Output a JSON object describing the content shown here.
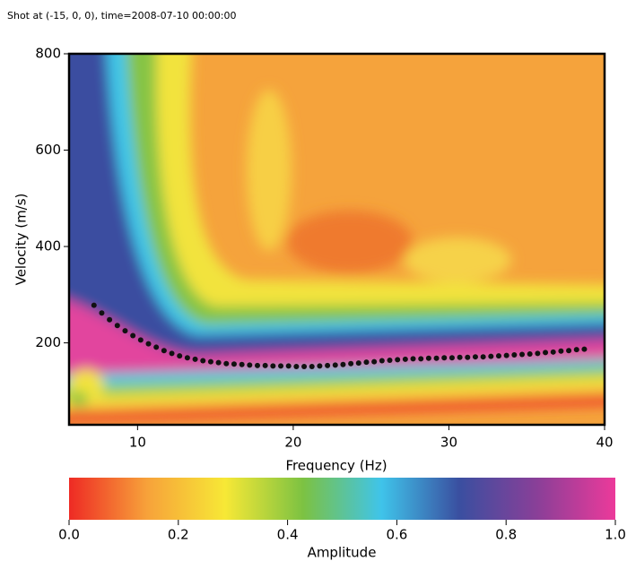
{
  "chart_data": {
    "type": "scatter",
    "title": "Shot at (-15, 0, 0), time=2008-07-10 00:00:00",
    "x_label": "Frequency (Hz)",
    "y_label": "Velocity (m/s)",
    "xlim": [
      5.6,
      40
    ],
    "ylim": [
      30,
      800
    ],
    "xticks": [
      10,
      20,
      30,
      40
    ],
    "yticks": [
      200,
      400,
      600,
      800
    ],
    "color": "#111111",
    "x": [
      7.2,
      7.7,
      8.2,
      8.7,
      9.2,
      9.7,
      10.2,
      10.7,
      11.2,
      11.7,
      12.2,
      12.7,
      13.2,
      13.7,
      14.2,
      14.7,
      15.2,
      15.7,
      16.2,
      16.7,
      17.2,
      17.7,
      18.2,
      18.7,
      19.2,
      19.7,
      20.2,
      20.7,
      21.2,
      21.7,
      22.2,
      22.7,
      23.2,
      23.7,
      24.2,
      24.7,
      25.2,
      25.7,
      26.2,
      26.7,
      27.2,
      27.7,
      28.2,
      28.7,
      29.2,
      29.7,
      30.2,
      30.7,
      31.2,
      31.7,
      32.2,
      32.7,
      33.2,
      33.7,
      34.2,
      34.7,
      35.2,
      35.7,
      36.2,
      36.7,
      37.2,
      37.7,
      38.2,
      38.7
    ],
    "values": [
      278,
      262,
      248,
      236,
      225,
      215,
      206,
      198,
      191,
      184,
      178,
      173,
      169,
      166,
      163,
      161,
      159,
      157,
      156,
      155,
      154,
      153,
      153,
      152,
      152,
      152,
      151,
      151,
      151,
      152,
      153,
      154,
      155,
      157,
      158,
      160,
      161,
      163,
      164,
      165,
      166,
      167,
      167,
      168,
      168,
      169,
      169,
      170,
      170,
      171,
      171,
      172,
      173,
      174,
      175,
      176,
      177,
      178,
      180,
      181,
      183,
      184,
      186,
      187
    ],
    "colorbar": {
      "label": "Amplitude",
      "xlim": [
        0,
        1
      ],
      "xticks": [
        {
          "value": 0,
          "label": "0.0"
        },
        {
          "value": 0.2,
          "label": "0.2"
        },
        {
          "value": 0.4,
          "label": "0.4"
        },
        {
          "value": 0.6,
          "label": "0.6"
        },
        {
          "value": 0.8,
          "label": "0.8"
        },
        {
          "value": 1,
          "label": "1.0"
        }
      ],
      "colors": [
        "#ee2a24",
        "#f7a23a",
        "#f7e836",
        "#7cc242",
        "#3fc4ea",
        "#3a4fa0",
        "#8a3f98",
        "#ec3a9a"
      ]
    }
  }
}
